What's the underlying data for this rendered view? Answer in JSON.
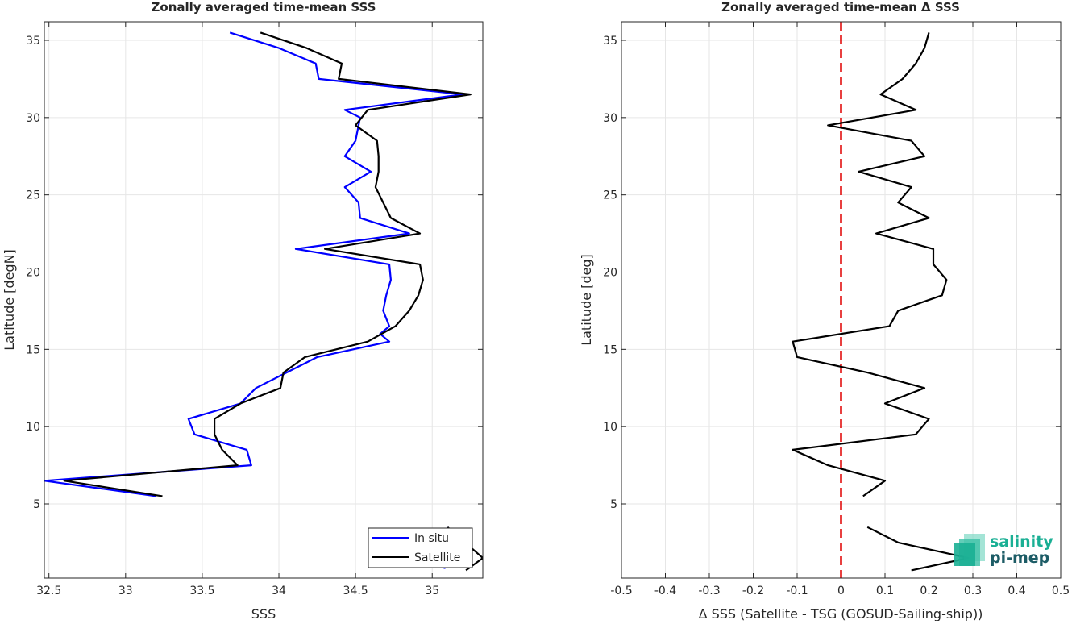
{
  "chart_data": [
    {
      "type": "line",
      "title": "Zonally averaged time-mean SSS",
      "xlabel": "SSS",
      "ylabel": "Latitude [degN]",
      "xlim": [
        32.47,
        35.33
      ],
      "ylim": [
        0.2,
        36.2
      ],
      "xticks": [
        "32.5",
        "33",
        "33.5",
        "34",
        "34.5",
        "35"
      ],
      "xtick_values": [
        32.5,
        33,
        33.5,
        34,
        34.5,
        35
      ],
      "yticks": [
        "5",
        "10",
        "15",
        "20",
        "25",
        "30",
        "35"
      ],
      "ytick_values": [
        5,
        10,
        15,
        20,
        25,
        30,
        35
      ],
      "grid": true,
      "legend_position": "bottom-right",
      "series": [
        {
          "name": "In situ",
          "color": "#0000ff",
          "segments": [
            [
              [
                33.68,
                35.5
              ],
              [
                34.0,
                34.5
              ],
              [
                34.24,
                33.5
              ],
              [
                34.26,
                32.5
              ],
              [
                35.2,
                31.5
              ],
              [
                34.43,
                30.5
              ],
              [
                34.53,
                30.0
              ],
              [
                34.5,
                28.5
              ],
              [
                34.43,
                27.5
              ],
              [
                34.6,
                26.5
              ],
              [
                34.43,
                25.5
              ],
              [
                34.52,
                24.5
              ],
              [
                34.53,
                23.5
              ],
              [
                34.85,
                22.5
              ],
              [
                34.11,
                21.5
              ],
              [
                34.72,
                20.5
              ],
              [
                34.73,
                19.5
              ],
              [
                34.7,
                18.5
              ],
              [
                34.68,
                17.5
              ],
              [
                34.72,
                16.5
              ],
              [
                34.66,
                16.0
              ],
              [
                34.72,
                15.5
              ],
              [
                34.25,
                14.5
              ],
              [
                34.05,
                13.5
              ],
              [
                33.85,
                12.5
              ],
              [
                33.75,
                11.5
              ],
              [
                33.41,
                10.5
              ],
              [
                33.45,
                9.5
              ],
              [
                33.79,
                8.5
              ],
              [
                33.82,
                7.5
              ],
              [
                32.47,
                6.5
              ],
              [
                33.2,
                5.5
              ]
            ],
            [
              [
                35.1,
                3.5
              ],
              [
                35.08,
                0.8
              ]
            ]
          ]
        },
        {
          "name": "Satellite",
          "color": "#000000",
          "segments": [
            [
              [
                33.88,
                35.5
              ],
              [
                34.18,
                34.5
              ],
              [
                34.41,
                33.5
              ],
              [
                34.39,
                32.5
              ],
              [
                35.25,
                31.5
              ],
              [
                34.58,
                30.5
              ],
              [
                34.5,
                29.5
              ],
              [
                34.64,
                28.5
              ],
              [
                34.65,
                27.5
              ],
              [
                34.65,
                26.5
              ],
              [
                34.63,
                25.5
              ],
              [
                34.68,
                24.5
              ],
              [
                34.73,
                23.5
              ],
              [
                34.92,
                22.5
              ],
              [
                34.3,
                21.5
              ],
              [
                34.92,
                20.5
              ],
              [
                34.94,
                19.5
              ],
              [
                34.91,
                18.5
              ],
              [
                34.85,
                17.5
              ],
              [
                34.76,
                16.5
              ],
              [
                34.58,
                15.5
              ],
              [
                34.17,
                14.5
              ],
              [
                34.03,
                13.5
              ],
              [
                34.01,
                12.5
              ],
              [
                33.75,
                11.5
              ],
              [
                33.58,
                10.5
              ],
              [
                33.58,
                9.5
              ],
              [
                33.63,
                8.5
              ],
              [
                33.73,
                7.5
              ],
              [
                32.6,
                6.5
              ],
              [
                33.24,
                5.5
              ]
            ],
            [
              [
                35.1,
                3.5
              ],
              [
                35.33,
                1.5
              ],
              [
                35.22,
                0.7
              ]
            ]
          ]
        }
      ]
    },
    {
      "type": "line",
      "title": "Zonally averaged time-mean Δ SSS",
      "xlabel": "Δ SSS (Satellite - TSG (GOSUD-Sailing-ship))",
      "ylabel": "Latitude [deg]",
      "xlim": [
        -0.5,
        0.5
      ],
      "ylim": [
        0.2,
        36.2
      ],
      "xticks": [
        "-0.5",
        "-0.4",
        "-0.3",
        "-0.2",
        "-0.1",
        "0",
        "0.1",
        "0.2",
        "0.3",
        "0.4",
        "0.5"
      ],
      "xtick_values": [
        -0.5,
        -0.4,
        -0.3,
        -0.2,
        -0.1,
        0,
        0.1,
        0.2,
        0.3,
        0.4,
        0.5
      ],
      "yticks": [
        "5",
        "10",
        "15",
        "20",
        "25",
        "30",
        "35"
      ],
      "ytick_values": [
        5,
        10,
        15,
        20,
        25,
        30,
        35
      ],
      "grid": true,
      "reference_line": {
        "x": 0,
        "color": "#e00000",
        "style": "dashed"
      },
      "series": [
        {
          "color": "#000000",
          "segments": [
            [
              [
                0.2,
                35.5
              ],
              [
                0.19,
                34.5
              ],
              [
                0.17,
                33.5
              ],
              [
                0.14,
                32.5
              ],
              [
                0.09,
                31.5
              ],
              [
                0.17,
                30.5
              ],
              [
                -0.03,
                29.5
              ],
              [
                0.16,
                28.5
              ],
              [
                0.19,
                27.5
              ],
              [
                0.04,
                26.5
              ],
              [
                0.16,
                25.5
              ],
              [
                0.13,
                24.5
              ],
              [
                0.2,
                23.5
              ],
              [
                0.08,
                22.5
              ],
              [
                0.21,
                21.5
              ],
              [
                0.21,
                20.5
              ],
              [
                0.24,
                19.5
              ],
              [
                0.23,
                18.5
              ],
              [
                0.13,
                17.5
              ],
              [
                0.11,
                16.5
              ],
              [
                -0.11,
                15.5
              ],
              [
                -0.1,
                14.5
              ],
              [
                0.06,
                13.5
              ],
              [
                0.19,
                12.5
              ],
              [
                0.1,
                11.5
              ],
              [
                0.2,
                10.5
              ],
              [
                0.17,
                9.5
              ],
              [
                -0.11,
                8.5
              ],
              [
                -0.03,
                7.5
              ],
              [
                0.1,
                6.5
              ],
              [
                0.05,
                5.5
              ]
            ],
            [
              [
                0.06,
                3.5
              ],
              [
                0.13,
                2.5
              ],
              [
                0.29,
                1.5
              ],
              [
                0.16,
                0.7
              ]
            ]
          ]
        }
      ]
    },
    {
      "type": "legend",
      "entries": [
        {
          "label": "In situ",
          "color": "#0000ff"
        },
        {
          "label": "Satellite",
          "color": "#000000"
        }
      ]
    }
  ],
  "logo": {
    "line1": "salinity",
    "line2": "pi-mep",
    "color": "#1aaf94"
  }
}
